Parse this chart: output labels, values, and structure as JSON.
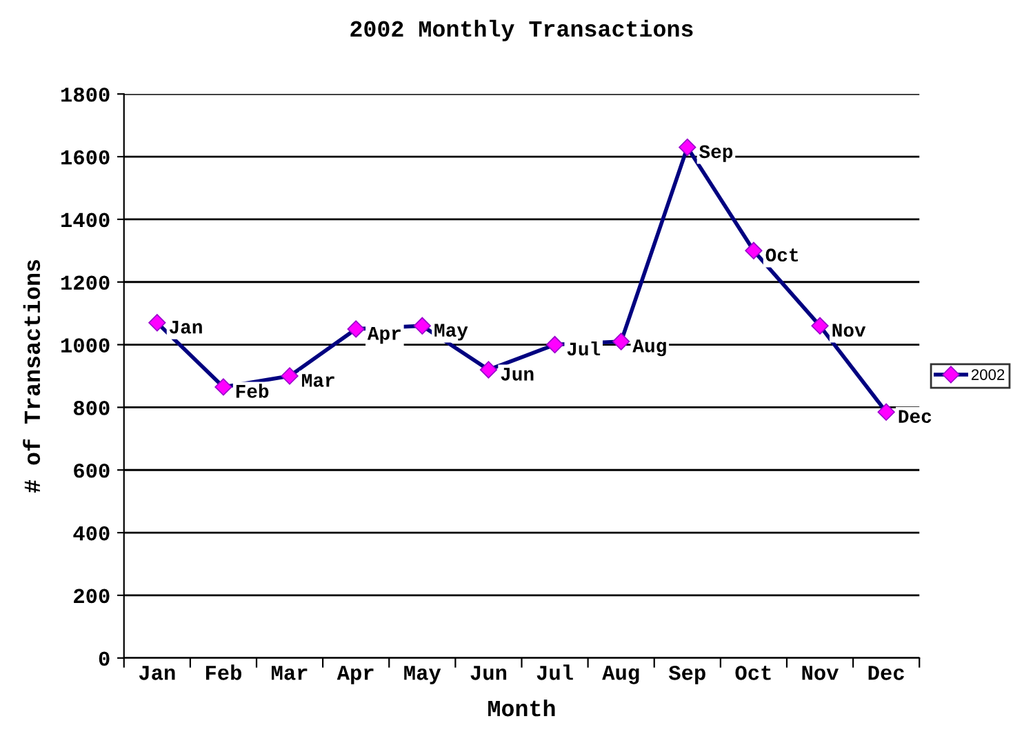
{
  "chart_data": {
    "type": "line",
    "title": "2002 Monthly Transactions",
    "xlabel": "Month",
    "ylabel": "# of Transactions",
    "categories": [
      "Jan",
      "Feb",
      "Mar",
      "Apr",
      "May",
      "Jun",
      "Jul",
      "Aug",
      "Sep",
      "Oct",
      "Nov",
      "Dec"
    ],
    "series": [
      {
        "name": "2002",
        "color": "#000080",
        "values": [
          1070,
          865,
          900,
          1050,
          1060,
          920,
          1000,
          1010,
          1630,
          1300,
          1060,
          785
        ]
      }
    ],
    "annotations": [
      {
        "text": "Jan",
        "x": "Jan",
        "y": 1070
      },
      {
        "text": "Feb",
        "x": "Feb",
        "y": 865
      },
      {
        "text": "Mar",
        "x": "Mar",
        "y": 900
      },
      {
        "text": "Apr",
        "x": "Apr",
        "y": 1050
      },
      {
        "text": "May",
        "x": "May",
        "y": 1060
      },
      {
        "text": "Jun",
        "x": "Jun",
        "y": 920
      },
      {
        "text": "Jul",
        "x": "Jul",
        "y": 1000
      },
      {
        "text": "Aug",
        "x": "Aug",
        "y": 1010
      },
      {
        "text": "Sep",
        "x": "Sep",
        "y": 1630
      },
      {
        "text": "Oct",
        "x": "Oct",
        "y": 1300
      },
      {
        "text": "Nov",
        "x": "Nov",
        "y": 1060
      },
      {
        "text": "Dec",
        "x": "Dec",
        "y": 785
      }
    ],
    "ylim": [
      0,
      1800
    ],
    "yticks": [
      0,
      200,
      400,
      600,
      800,
      1000,
      1200,
      1400,
      1600,
      1800
    ],
    "grid": "y",
    "legend": "right",
    "marker": "diamond",
    "line_style": "solid"
  }
}
